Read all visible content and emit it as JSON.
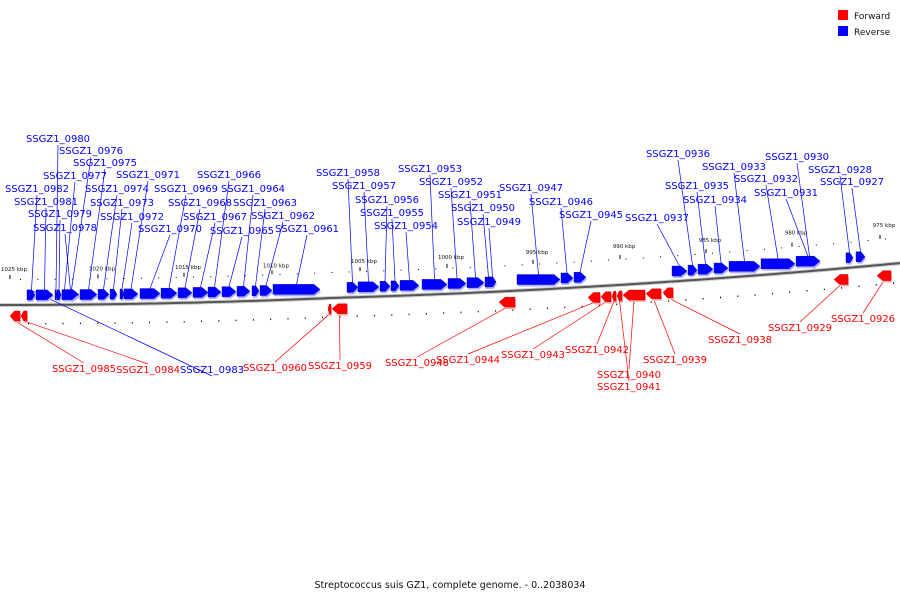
{
  "legend": [
    {
      "label": "Forward",
      "color": "#ff0000"
    },
    {
      "label": "Reverse",
      "color": "#0000ff"
    }
  ],
  "caption": "Streptococcus suis GZ1, complete genome. - 0..2038034",
  "colors": {
    "forward": "#ff0000",
    "reverse": "#0000ff",
    "backbone": "#555555"
  },
  "ticks": [
    {
      "kbp": 1025,
      "label": "1025 kbp"
    },
    {
      "kbp": 1020,
      "label": "1020 kbp"
    },
    {
      "kbp": 1015,
      "label": "1015 kbp"
    },
    {
      "kbp": 1010,
      "label": "1010 kbp"
    },
    {
      "kbp": 1005,
      "label": "1005 kbp"
    },
    {
      "kbp": 1000,
      "label": "1000 kbp"
    },
    {
      "kbp": 995,
      "label": "995 kbp"
    },
    {
      "kbp": 990,
      "label": "990 kbp"
    },
    {
      "kbp": 985,
      "label": "985 kbp"
    },
    {
      "kbp": 980,
      "label": "980 kbp"
    },
    {
      "kbp": 975,
      "label": "975 kbp"
    }
  ],
  "genes": [
    {
      "id": "SSGZ1_0985",
      "strand": "forward"
    },
    {
      "id": "SSGZ1_0984",
      "strand": "forward"
    },
    {
      "id": "SSGZ1_0983",
      "strand": "reverse"
    },
    {
      "id": "SSGZ1_0982",
      "strand": "reverse"
    },
    {
      "id": "SSGZ1_0981",
      "strand": "reverse"
    },
    {
      "id": "SSGZ1_0980",
      "strand": "reverse"
    },
    {
      "id": "SSGZ1_0979",
      "strand": "reverse"
    },
    {
      "id": "SSGZ1_0978",
      "strand": "reverse"
    },
    {
      "id": "SSGZ1_0977",
      "strand": "reverse"
    },
    {
      "id": "SSGZ1_0976",
      "strand": "reverse"
    },
    {
      "id": "SSGZ1_0975",
      "strand": "reverse"
    },
    {
      "id": "SSGZ1_0974",
      "strand": "reverse"
    },
    {
      "id": "SSGZ1_0973",
      "strand": "reverse"
    },
    {
      "id": "SSGZ1_0972",
      "strand": "reverse"
    },
    {
      "id": "SSGZ1_0971",
      "strand": "reverse"
    },
    {
      "id": "SSGZ1_0970",
      "strand": "reverse"
    },
    {
      "id": "SSGZ1_0969",
      "strand": "reverse"
    },
    {
      "id": "SSGZ1_0968",
      "strand": "reverse"
    },
    {
      "id": "SSGZ1_0967",
      "strand": "reverse"
    },
    {
      "id": "SSGZ1_0966",
      "strand": "reverse"
    },
    {
      "id": "SSGZ1_0965",
      "strand": "reverse"
    },
    {
      "id": "SSGZ1_0964",
      "strand": "reverse"
    },
    {
      "id": "SSGZ1_0963",
      "strand": "reverse"
    },
    {
      "id": "SSGZ1_0962",
      "strand": "reverse"
    },
    {
      "id": "SSGZ1_0961",
      "strand": "reverse"
    },
    {
      "id": "SSGZ1_0960",
      "strand": "forward"
    },
    {
      "id": "SSGZ1_0959",
      "strand": "forward"
    },
    {
      "id": "SSGZ1_0958",
      "strand": "reverse"
    },
    {
      "id": "SSGZ1_0957",
      "strand": "reverse"
    },
    {
      "id": "SSGZ1_0956",
      "strand": "reverse"
    },
    {
      "id": "SSGZ1_0955",
      "strand": "reverse"
    },
    {
      "id": "SSGZ1_0954",
      "strand": "reverse"
    },
    {
      "id": "SSGZ1_0953",
      "strand": "reverse"
    },
    {
      "id": "SSGZ1_0952",
      "strand": "reverse"
    },
    {
      "id": "SSGZ1_0951",
      "strand": "reverse"
    },
    {
      "id": "SSGZ1_0950",
      "strand": "reverse"
    },
    {
      "id": "SSGZ1_0949",
      "strand": "reverse"
    },
    {
      "id": "SSGZ1_0948",
      "strand": "forward"
    },
    {
      "id": "SSGZ1_0947",
      "strand": "reverse"
    },
    {
      "id": "SSGZ1_0946",
      "strand": "reverse"
    },
    {
      "id": "SSGZ1_0945",
      "strand": "reverse"
    },
    {
      "id": "SSGZ1_0944",
      "strand": "forward"
    },
    {
      "id": "SSGZ1_0943",
      "strand": "forward"
    },
    {
      "id": "SSGZ1_0942",
      "strand": "forward"
    },
    {
      "id": "SSGZ1_0941",
      "strand": "forward"
    },
    {
      "id": "SSGZ1_0940",
      "strand": "forward"
    },
    {
      "id": "SSGZ1_0939",
      "strand": "forward"
    },
    {
      "id": "SSGZ1_0938",
      "strand": "forward"
    },
    {
      "id": "SSGZ1_0937",
      "strand": "reverse"
    },
    {
      "id": "SSGZ1_0936",
      "strand": "reverse"
    },
    {
      "id": "SSGZ1_0935",
      "strand": "reverse"
    },
    {
      "id": "SSGZ1_0934",
      "strand": "reverse"
    },
    {
      "id": "SSGZ1_0933",
      "strand": "reverse"
    },
    {
      "id": "SSGZ1_0932",
      "strand": "reverse"
    },
    {
      "id": "SSGZ1_0931",
      "strand": "reverse"
    },
    {
      "id": "SSGZ1_0930",
      "strand": "reverse"
    },
    {
      "id": "SSGZ1_0929",
      "strand": "forward"
    },
    {
      "id": "SSGZ1_0928",
      "strand": "reverse"
    },
    {
      "id": "SSGZ1_0927",
      "strand": "reverse"
    },
    {
      "id": "SSGZ1_0926",
      "strand": "forward"
    }
  ]
}
